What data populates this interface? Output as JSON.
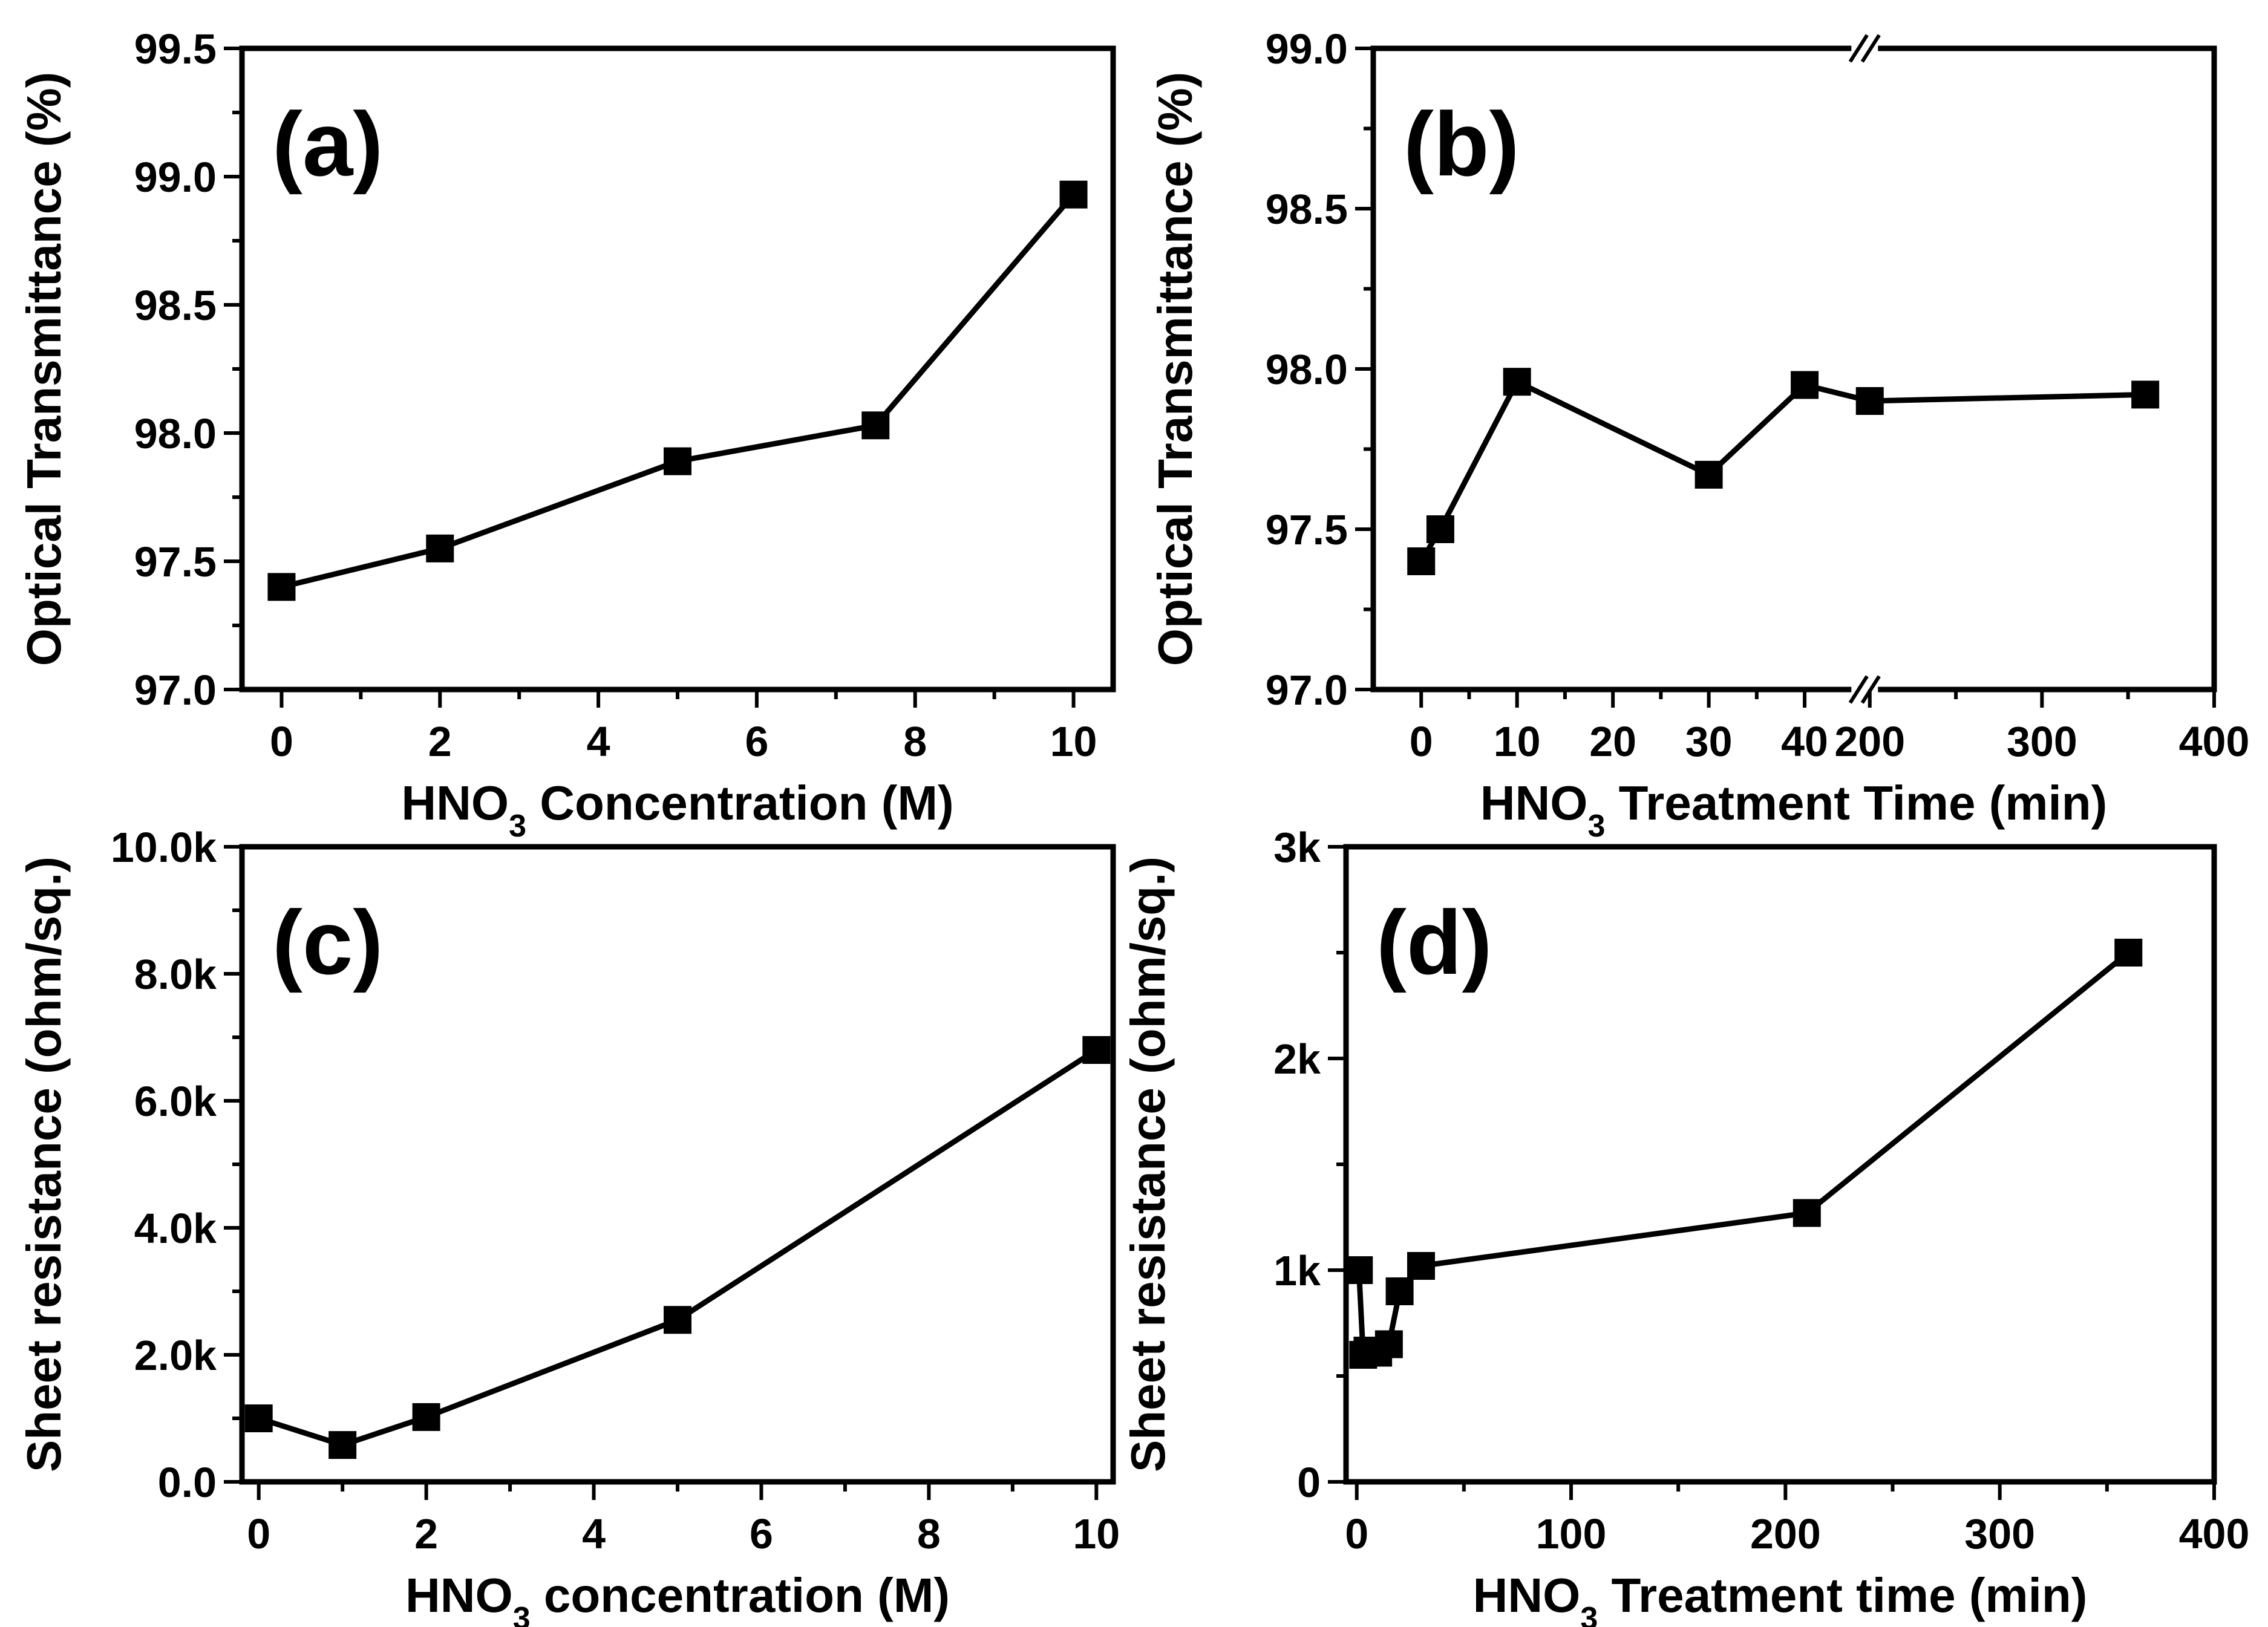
{
  "chart_data": [
    {
      "type": "line",
      "panel_label": "(a)",
      "xlabel": {
        "pre": "HNO",
        "sub": "3",
        "post": " Concentration (M)"
      },
      "ylabel": "Optical Transmittance (%)",
      "xlim": [
        -0.5,
        10.5
      ],
      "ylim": [
        97.0,
        99.5
      ],
      "xticks": [
        0,
        2,
        4,
        6,
        8,
        10
      ],
      "xtick_labels": [
        "0",
        "2",
        "4",
        "6",
        "8",
        "10"
      ],
      "yticks": [
        97.0,
        97.5,
        98.0,
        98.5,
        99.0,
        99.5
      ],
      "ytick_labels": [
        "97.0",
        "97.5",
        "98.0",
        "98.5",
        "99.0",
        "99.5"
      ],
      "x": [
        0,
        2,
        5,
        7.5,
        10
      ],
      "y": [
        97.4,
        97.55,
        97.89,
        98.03,
        98.93
      ]
    },
    {
      "type": "line",
      "panel_label": "(b)",
      "xlabel": {
        "pre": "HNO",
        "sub": "3",
        "post": " Treatment Time (min)"
      },
      "ylabel": "Optical Transmittance (%)",
      "xlim": [
        -5,
        400
      ],
      "ylim": [
        97.0,
        99.0
      ],
      "axis_break": {
        "from": 45,
        "to": 190,
        "display_at": 45
      },
      "xticks": [
        0,
        10,
        20,
        30,
        40,
        200,
        300,
        400
      ],
      "xtick_labels": [
        "0",
        "10",
        "20",
        "30",
        "40",
        "200",
        "300",
        "400"
      ],
      "yticks": [
        97.0,
        97.5,
        98.0,
        98.5,
        99.0
      ],
      "ytick_labels": [
        "97.0",
        "97.5",
        "98.0",
        "98.5",
        "99.0"
      ],
      "x": [
        0,
        2,
        10,
        30,
        40,
        200,
        360
      ],
      "y": [
        97.4,
        97.5,
        97.96,
        97.67,
        97.95,
        97.9,
        97.92
      ]
    },
    {
      "type": "line",
      "panel_label": "(c)",
      "xlabel": {
        "pre": "HNO",
        "sub": "3",
        "post": " concentration (M)"
      },
      "ylabel": "Sheet resistance (ohm/sq.)",
      "xlim": [
        -0.2,
        10.2
      ],
      "ylim": [
        0,
        10000
      ],
      "xticks": [
        0,
        2,
        4,
        6,
        8,
        10
      ],
      "xtick_labels": [
        "0",
        "2",
        "4",
        "6",
        "8",
        "10"
      ],
      "yticks": [
        0,
        2000,
        4000,
        6000,
        8000,
        10000
      ],
      "ytick_labels": [
        "0.0",
        "2.0k",
        "4.0k",
        "6.0k",
        "8.0k",
        "10.0k"
      ],
      "x": [
        0,
        1,
        2,
        5,
        10
      ],
      "y": [
        1000,
        580,
        1020,
        2550,
        6800
      ]
    },
    {
      "type": "line",
      "panel_label": "(d)",
      "xlabel": {
        "pre": "HNO",
        "sub": "3",
        "post": " Treatment time (min)"
      },
      "ylabel": "Sheet resistance (ohm/sq.)",
      "xlim": [
        -5,
        400
      ],
      "ylim": [
        0,
        3000
      ],
      "xticks": [
        0,
        100,
        200,
        300,
        400
      ],
      "xtick_labels": [
        "0",
        "100",
        "200",
        "300",
        "400"
      ],
      "yticks": [
        0,
        1000,
        2000,
        3000
      ],
      "ytick_labels": [
        "0",
        "1k",
        "2k",
        "3k"
      ],
      "x": [
        1,
        3,
        5,
        10,
        15,
        20,
        30,
        210,
        360
      ],
      "y": [
        1000,
        600,
        620,
        610,
        650,
        900,
        1020,
        1270,
        2500
      ]
    }
  ]
}
